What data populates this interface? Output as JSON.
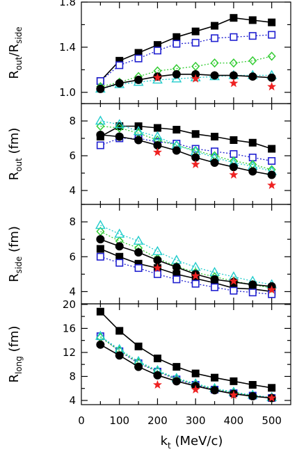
{
  "chart_data": {
    "type": "line",
    "xlabel": {
      "main": "k",
      "sub": "t",
      "unit": " (MeV/c)"
    },
    "x_ticks": [
      0,
      100,
      200,
      300,
      400,
      500
    ],
    "xlim": [
      0,
      550
    ],
    "x": [
      50,
      100,
      150,
      200,
      250,
      300,
      350,
      400,
      450,
      500
    ],
    "panels": [
      {
        "id": "ratio",
        "ylabel": {
          "main": "R",
          "sub": "out",
          "mid": "/R",
          "sub2": "side",
          "unit": ""
        },
        "ylim": [
          0.9,
          1.8
        ],
        "y_ticks": [
          1.0,
          1.4,
          1.8
        ],
        "y_tick_labels": [
          "1.0",
          "1.4",
          "1.8"
        ],
        "series": [
          {
            "style": "filled-square",
            "color": "#000000",
            "dash": false,
            "values": [
              1.1,
              1.28,
              1.35,
              1.42,
              1.49,
              1.54,
              1.59,
              1.66,
              1.64,
              1.62
            ]
          },
          {
            "style": "open-square",
            "color": "#1f1fd0",
            "dash": true,
            "values": [
              1.1,
              1.24,
              1.3,
              1.37,
              1.43,
              1.44,
              1.48,
              1.49,
              1.5,
              1.51
            ]
          },
          {
            "style": "open-diamond",
            "color": "#33cc33",
            "dash": true,
            "values": [
              1.05,
              1.09,
              1.14,
              1.19,
              1.21,
              1.23,
              1.26,
              1.26,
              1.28,
              1.32
            ]
          },
          {
            "style": "open-triangle",
            "color": "#22cccc",
            "dash": true,
            "values": [
              1.03,
              1.07,
              1.09,
              1.11,
              1.12,
              1.13,
              1.14,
              1.15,
              1.15,
              1.15
            ]
          },
          {
            "style": "filled-circle",
            "color": "#000000",
            "dash": false,
            "values": [
              1.03,
              1.08,
              1.11,
              1.14,
              1.16,
              1.16,
              1.15,
              1.15,
              1.14,
              1.13
            ]
          },
          {
            "style": "star",
            "color": "#ee2222",
            "x": [
              200,
              300,
              400,
              500
            ],
            "values": [
              1.13,
              1.12,
              1.08,
              1.05
            ]
          }
        ]
      },
      {
        "id": "rout",
        "ylabel": {
          "main": "R",
          "sub": "out",
          "unit": " (fm)"
        },
        "ylim": [
          3.2,
          9.0
        ],
        "y_ticks": [
          4,
          6,
          8
        ],
        "y_tick_labels": [
          "4",
          "6",
          "8"
        ],
        "series": [
          {
            "style": "filled-square",
            "color": "#000000",
            "dash": false,
            "values": [
              7.1,
              7.7,
              7.7,
              7.6,
              7.5,
              7.25,
              7.1,
              6.9,
              6.75,
              6.4
            ]
          },
          {
            "style": "open-square",
            "color": "#1f1fd0",
            "dash": true,
            "values": [
              6.6,
              7.0,
              7.0,
              6.8,
              6.7,
              6.4,
              6.25,
              6.1,
              5.9,
              5.7
            ]
          },
          {
            "style": "open-diamond",
            "color": "#33cc33",
            "dash": true,
            "values": [
              7.7,
              7.6,
              7.3,
              6.9,
              6.6,
              6.3,
              6.0,
              5.7,
              5.5,
              5.2
            ]
          },
          {
            "style": "open-triangle",
            "color": "#22cccc",
            "dash": true,
            "values": [
              8.0,
              7.8,
              7.4,
              7.1,
              6.6,
              6.25,
              5.9,
              5.6,
              5.4,
              5.1
            ]
          },
          {
            "style": "filled-circle",
            "color": "#000000",
            "dash": false,
            "values": [
              7.2,
              7.1,
              6.9,
              6.6,
              6.3,
              5.9,
              5.6,
              5.35,
              5.1,
              4.9
            ]
          },
          {
            "style": "star",
            "color": "#ee2222",
            "x": [
              200,
              300,
              400,
              500
            ],
            "values": [
              6.2,
              5.5,
              4.9,
              4.3
            ]
          }
        ]
      },
      {
        "id": "rside",
        "ylabel": {
          "main": "R",
          "sub": "side",
          "unit": " (fm)"
        },
        "ylim": [
          3.3,
          9.0
        ],
        "y_ticks": [
          4,
          6,
          8
        ],
        "y_tick_labels": [
          "4",
          "6",
          "8"
        ],
        "series": [
          {
            "style": "filled-square",
            "color": "#000000",
            "dash": false,
            "values": [
              6.45,
              6.0,
              5.6,
              5.35,
              5.0,
              4.75,
              4.5,
              4.2,
              4.15,
              4.0
            ]
          },
          {
            "style": "open-square",
            "color": "#1f1fd0",
            "dash": true,
            "values": [
              6.0,
              5.65,
              5.35,
              5.0,
              4.7,
              4.45,
              4.25,
              4.05,
              3.95,
              3.85
            ]
          },
          {
            "style": "open-diamond",
            "color": "#33cc33",
            "dash": true,
            "values": [
              7.45,
              6.9,
              6.5,
              5.9,
              5.45,
              5.1,
              4.85,
              4.6,
              4.4,
              4.2
            ]
          },
          {
            "style": "open-triangle",
            "color": "#22cccc",
            "dash": true,
            "values": [
              7.8,
              7.3,
              6.9,
              6.3,
              5.8,
              5.4,
              5.1,
              4.85,
              4.6,
              4.4
            ]
          },
          {
            "style": "filled-circle",
            "color": "#000000",
            "dash": false,
            "values": [
              7.0,
              6.6,
              6.25,
              5.8,
              5.4,
              5.0,
              4.7,
              4.55,
              4.4,
              4.3
            ]
          },
          {
            "style": "star",
            "color": "#ee2222",
            "x": [
              200,
              300,
              400,
              500
            ],
            "values": [
              5.35,
              4.9,
              4.6,
              4.1
            ]
          }
        ]
      },
      {
        "id": "rlong",
        "ylabel": {
          "main": "R",
          "sub": "long",
          "unit": " (fm)"
        },
        "ylim": [
          3.3,
          20.1
        ],
        "y_ticks": [
          4,
          8,
          12,
          16,
          20
        ],
        "y_tick_labels": [
          "4",
          "8",
          "12",
          "16",
          "20"
        ],
        "series": [
          {
            "style": "filled-square",
            "color": "#000000",
            "dash": false,
            "values": [
              18.8,
              15.6,
              13.0,
              11.0,
              9.6,
              8.5,
              7.8,
              7.2,
              6.6,
              6.1
            ]
          },
          {
            "style": "open-square",
            "color": "#1f1fd0",
            "dash": true,
            "values": [
              14.7,
              12.2,
              10.2,
              8.8,
              7.5,
              6.6,
              5.8,
              5.2,
              4.8,
              4.4
            ]
          },
          {
            "style": "open-diamond",
            "color": "#33cc33",
            "dash": true,
            "values": [
              14.5,
              12.3,
              10.3,
              8.9,
              7.6,
              6.7,
              5.9,
              5.3,
              4.8,
              4.4
            ]
          },
          {
            "style": "open-triangle",
            "color": "#22cccc",
            "dash": true,
            "values": [
              14.7,
              12.5,
              10.5,
              9.0,
              7.7,
              6.8,
              6.0,
              5.4,
              4.9,
              4.5
            ]
          },
          {
            "style": "filled-circle",
            "color": "#000000",
            "dash": false,
            "values": [
              13.3,
              11.5,
              9.6,
              8.2,
              7.2,
              6.4,
              5.7,
              5.1,
              4.7,
              4.4
            ]
          },
          {
            "style": "star",
            "color": "#ee2222",
            "x": [
              200,
              300,
              400,
              500
            ],
            "values": [
              6.6,
              5.8,
              4.9,
              4.4
            ]
          }
        ]
      }
    ]
  }
}
